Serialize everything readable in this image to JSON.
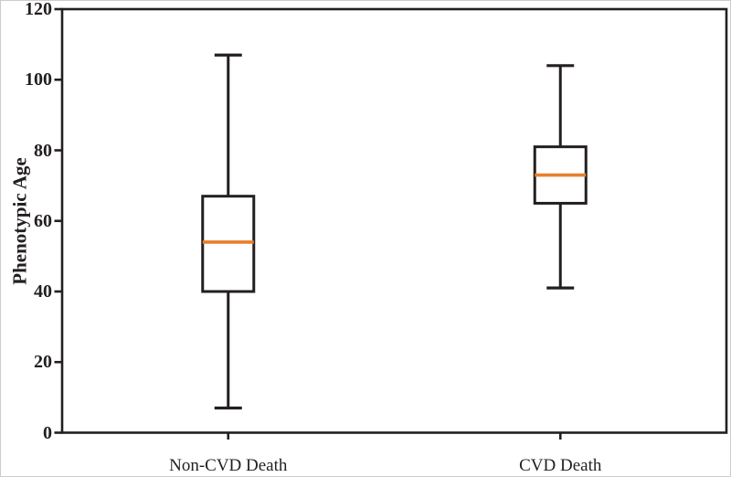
{
  "chart_data": {
    "type": "box",
    "title": "",
    "xlabel": "",
    "ylabel": "Phenotypic Age",
    "ylim": [
      0,
      120
    ],
    "yticks": [
      0,
      20,
      40,
      60,
      80,
      100,
      120
    ],
    "categories": [
      "Non-CVD Death",
      "CVD Death"
    ],
    "series": [
      {
        "name": "Non-CVD Death",
        "min": 7,
        "q1": 40,
        "median": 54,
        "q3": 67,
        "max": 107
      },
      {
        "name": "CVD Death",
        "min": 41,
        "q1": 65,
        "median": 73,
        "q3": 81,
        "max": 104
      }
    ],
    "grid": false,
    "frame": true,
    "legend": "none",
    "colors": {
      "line": "#231f20",
      "median": "#e87f2b",
      "box_fill": "#ffffff",
      "background": "#ffffff",
      "figure_border": "#cccccc"
    }
  }
}
